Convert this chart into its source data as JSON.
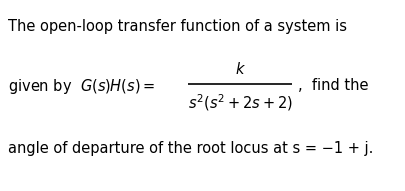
{
  "line1": "The open-loop transfer function of a system is",
  "line3": "angle of departure of the root locus at s = −1 + j.",
  "bg_color": "#ffffff",
  "text_color": "#000000",
  "fontsize": 10.5,
  "fig_width": 4.05,
  "fig_height": 1.91,
  "dpi": 100
}
